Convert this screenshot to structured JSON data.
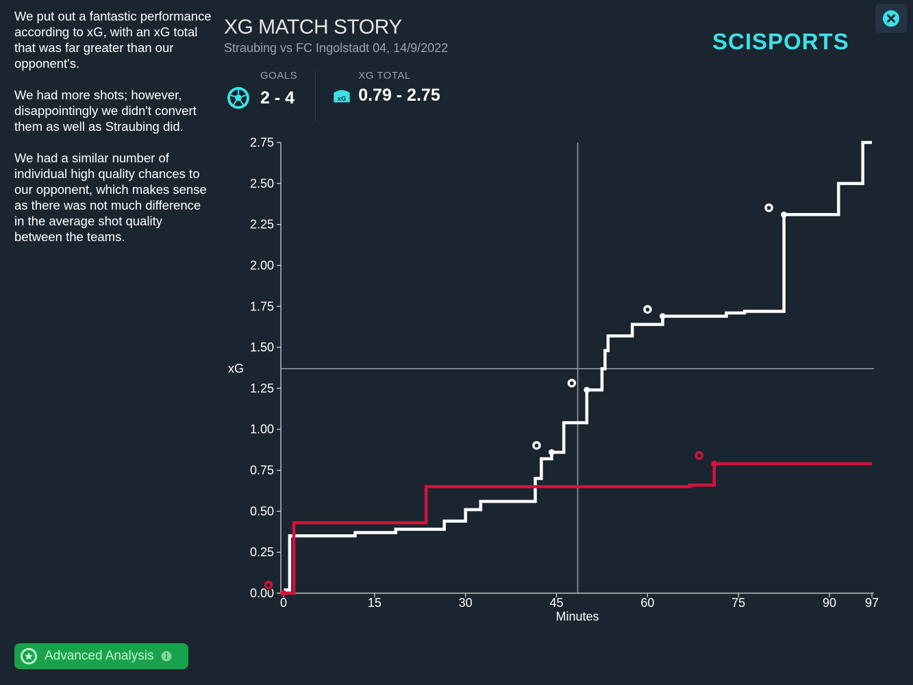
{
  "summary": {
    "p1": "We put out a fantastic performance according to xG, with an xG total that was far greater than our opponent's.",
    "p2": "We had more shots; however, disappointingly we didn't convert them as well as Straubing did.",
    "p3": "We had a similar number of individual high quality chances to our opponent, which makes sense as there was not much difference in the average shot quality between the teams."
  },
  "header": {
    "title": "XG MATCH STORY",
    "subtitle": "Straubing vs FC Ingolstadt 04, 14/9/2022"
  },
  "stats": {
    "goals_label": "GOALS",
    "goals_value": "2 - 4",
    "xg_label": "XG TOTAL",
    "xg_value": "0.79 - 2.75",
    "xg_icon_text": "xG"
  },
  "logo": {
    "text": "SCISPORTS"
  },
  "colors": {
    "background": "#1b2530",
    "accent": "#3de0e6",
    "home": "#d6123a",
    "away": "#ffffff",
    "button": "#19a24c"
  },
  "button": {
    "label": "Advanced Analysis"
  },
  "chart_data": {
    "type": "line",
    "step": true,
    "xlabel": "Minutes",
    "ylabel": "xG",
    "xlim": [
      0,
      97
    ],
    "ylim": [
      0,
      2.75
    ],
    "xticks": [
      0,
      15,
      30,
      45,
      60,
      75,
      90,
      97
    ],
    "yticks": [
      0.0,
      0.25,
      0.5,
      0.75,
      1.0,
      1.25,
      1.5,
      1.75,
      2.0,
      2.25,
      2.5,
      2.75
    ],
    "ytick_labels": [
      "0.00",
      "0.25",
      "0.50",
      "0.75",
      "1.00",
      "1.25",
      "1.50",
      "1.75",
      "2.00",
      "2.25",
      "2.50",
      "2.75"
    ],
    "xtick_labels": [
      "0",
      "15",
      "30",
      "45",
      "60",
      "75",
      "90",
      "97"
    ],
    "reference": {
      "x": 48.5,
      "y": 1.37
    },
    "series": [
      {
        "name": "FC Ingolstadt 04",
        "color": "#ffffff",
        "steps": [
          [
            0,
            0
          ],
          [
            0.3,
            0.02
          ],
          [
            1,
            0.35
          ],
          [
            11.8,
            0.37
          ],
          [
            18.5,
            0.39
          ],
          [
            26.5,
            0.44
          ],
          [
            30,
            0.51
          ],
          [
            32.5,
            0.56
          ],
          [
            41.5,
            0.7
          ],
          [
            42.5,
            0.82
          ],
          [
            44.2,
            0.86
          ],
          [
            46.2,
            1.04
          ],
          [
            50,
            1.24
          ],
          [
            52.5,
            1.37
          ],
          [
            53,
            1.48
          ],
          [
            53.5,
            1.57
          ],
          [
            57.5,
            1.64
          ],
          [
            62.5,
            1.69
          ],
          [
            73,
            1.71
          ],
          [
            76,
            1.72
          ],
          [
            82.5,
            2.31
          ],
          [
            91.5,
            2.5
          ],
          [
            95.5,
            2.75
          ],
          [
            97,
            2.75
          ]
        ],
        "goals": [
          44.2,
          50,
          62.5,
          82.5
        ]
      },
      {
        "name": "Straubing",
        "color": "#d6123a",
        "steps": [
          [
            0,
            0
          ],
          [
            1.7,
            0.43
          ],
          [
            23.5,
            0.65
          ],
          [
            67,
            0.66
          ],
          [
            71,
            0.79
          ],
          [
            97,
            0.79
          ]
        ],
        "goals": [
          0,
          71
        ]
      }
    ]
  }
}
